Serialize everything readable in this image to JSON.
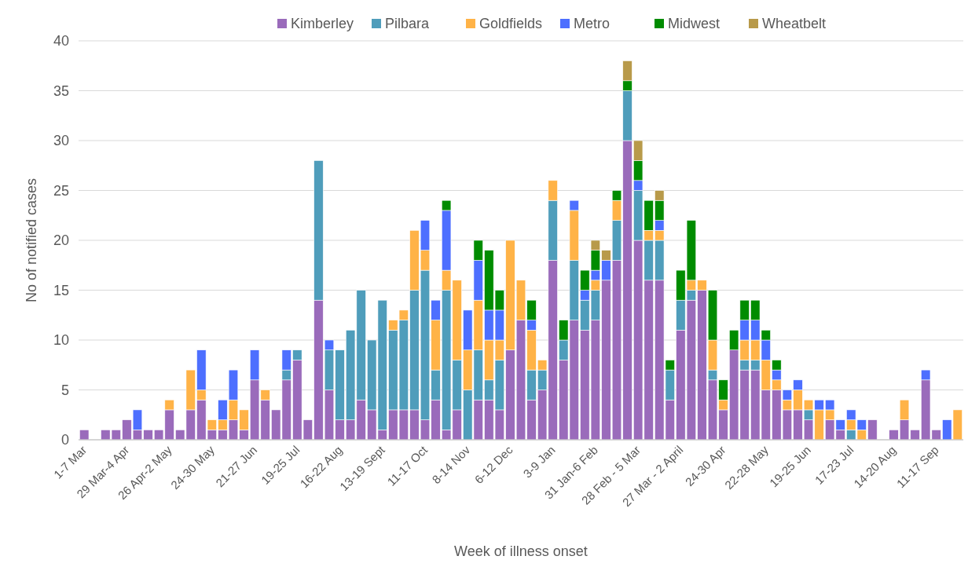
{
  "chart_data": {
    "type": "bar",
    "stacked": true,
    "xlabel": "Week of illness onset",
    "ylabel": "No of notified cases",
    "categories": [
      "1-7 Mar",
      null,
      null,
      null,
      "29 Mar-4 Apr",
      null,
      null,
      null,
      "26 Apr-2 May",
      null,
      null,
      null,
      "24-30 May",
      null,
      null,
      null,
      "21-27 Jun",
      null,
      null,
      null,
      "19-25 Jul",
      null,
      null,
      null,
      "16-22 Aug",
      null,
      null,
      null,
      "13-19 Sept",
      null,
      null,
      null,
      "11-17 Oct",
      null,
      null,
      null,
      "8-14 Nov",
      null,
      null,
      null,
      "6-12 Dec",
      null,
      null,
      null,
      "3-9 Jan",
      null,
      null,
      null,
      "31 Jan-6 Feb",
      null,
      null,
      null,
      "28 Feb - 5 Mar",
      null,
      null,
      null,
      "27 Mar - 2 April",
      null,
      null,
      null,
      "24-30 Apr",
      null,
      null,
      null,
      "22-28 May",
      null,
      null,
      null,
      "19-25 Jun",
      null,
      null,
      null,
      "17-23 Jul",
      null,
      null,
      null,
      "14-20 Aug",
      null,
      null,
      null,
      "11-17 Sep",
      null,
      null
    ],
    "series": [
      {
        "name": "Kimberley",
        "color": "#9a6bbb",
        "values": [
          1,
          0,
          1,
          1,
          2,
          1,
          1,
          1,
          3,
          1,
          3,
          4,
          1,
          1,
          2,
          1,
          6,
          4,
          3,
          6,
          8,
          2,
          14,
          5,
          2,
          2,
          4,
          3,
          1,
          3,
          3,
          3,
          2,
          4,
          1,
          3,
          0,
          4,
          4,
          3,
          9,
          12,
          4,
          5,
          18,
          8,
          12,
          11,
          12,
          16,
          18,
          30,
          20,
          16,
          16,
          4,
          11,
          14,
          15,
          6,
          3,
          9,
          7,
          7,
          5,
          5,
          3,
          3,
          2,
          0,
          2,
          1,
          0,
          0,
          2,
          0,
          1,
          2,
          1,
          6,
          1,
          0,
          0
        ]
      },
      {
        "name": "Pilbara",
        "color": "#4f9dbb",
        "values": [
          0,
          0,
          0,
          0,
          0,
          0,
          0,
          0,
          0,
          0,
          0,
          0,
          0,
          0,
          0,
          0,
          0,
          0,
          0,
          1,
          1,
          0,
          14,
          4,
          7,
          9,
          11,
          7,
          13,
          8,
          9,
          12,
          15,
          3,
          14,
          5,
          5,
          5,
          2,
          5,
          0,
          0,
          3,
          2,
          6,
          2,
          6,
          3,
          3,
          0,
          4,
          5,
          5,
          4,
          4,
          3,
          3,
          1,
          0,
          1,
          0,
          0,
          1,
          1,
          0,
          0,
          0,
          0,
          1,
          0,
          0,
          0,
          1,
          0,
          0,
          0,
          0,
          0,
          0,
          0,
          0,
          0,
          0
        ]
      },
      {
        "name": "Goldfields",
        "color": "#ffb347",
        "values": [
          0,
          0,
          0,
          0,
          0,
          0,
          0,
          0,
          1,
          0,
          4,
          1,
          1,
          1,
          2,
          2,
          0,
          1,
          0,
          0,
          0,
          0,
          0,
          0,
          0,
          0,
          0,
          0,
          0,
          1,
          1,
          6,
          2,
          5,
          2,
          8,
          4,
          5,
          4,
          2,
          11,
          4,
          4,
          1,
          2,
          0,
          5,
          0,
          1,
          0,
          2,
          0,
          0,
          1,
          1,
          0,
          0,
          1,
          1,
          3,
          1,
          0,
          2,
          2,
          3,
          1,
          1,
          2,
          1,
          3,
          1,
          0,
          1,
          1,
          0,
          0,
          0,
          2,
          0,
          0,
          0,
          0,
          3
        ]
      },
      {
        "name": "Metro",
        "color": "#4d6fff",
        "values": [
          0,
          0,
          0,
          0,
          0,
          2,
          0,
          0,
          0,
          0,
          0,
          4,
          0,
          2,
          3,
          0,
          3,
          0,
          0,
          2,
          0,
          0,
          0,
          1,
          0,
          0,
          0,
          0,
          0,
          0,
          0,
          0,
          3,
          2,
          6,
          0,
          4,
          4,
          3,
          3,
          0,
          0,
          1,
          0,
          0,
          0,
          1,
          1,
          1,
          2,
          0,
          0,
          1,
          0,
          1,
          0,
          0,
          0,
          0,
          0,
          0,
          0,
          2,
          2,
          2,
          1,
          1,
          1,
          0,
          1,
          1,
          1,
          1,
          1,
          0,
          0,
          0,
          0,
          0,
          1,
          0,
          2,
          0
        ]
      },
      {
        "name": "Midwest",
        "color": "#008c00",
        "values": [
          0,
          0,
          0,
          0,
          0,
          0,
          0,
          0,
          0,
          0,
          0,
          0,
          0,
          0,
          0,
          0,
          0,
          0,
          0,
          0,
          0,
          0,
          0,
          0,
          0,
          0,
          0,
          0,
          0,
          0,
          0,
          0,
          0,
          0,
          1,
          0,
          0,
          2,
          6,
          2,
          0,
          0,
          2,
          0,
          0,
          2,
          0,
          2,
          2,
          0,
          1,
          1,
          2,
          3,
          2,
          1,
          3,
          6,
          0,
          5,
          2,
          2,
          2,
          2,
          1,
          1,
          0,
          0,
          0,
          0,
          0,
          0,
          0,
          0,
          0,
          0,
          0,
          0,
          0,
          0,
          0,
          0,
          0
        ]
      },
      {
        "name": "Wheatbelt",
        "color": "#b89a4a",
        "values": [
          0,
          0,
          0,
          0,
          0,
          0,
          0,
          0,
          0,
          0,
          0,
          0,
          0,
          0,
          0,
          0,
          0,
          0,
          0,
          0,
          0,
          0,
          0,
          0,
          0,
          0,
          0,
          0,
          0,
          0,
          0,
          0,
          0,
          0,
          0,
          0,
          0,
          0,
          0,
          0,
          0,
          0,
          0,
          0,
          0,
          0,
          0,
          0,
          1,
          1,
          0,
          2,
          2,
          0,
          1,
          0,
          0,
          0,
          0,
          0,
          0,
          0,
          0,
          0,
          0,
          0,
          0,
          0,
          0,
          0,
          0,
          0,
          0,
          0,
          0,
          0,
          0,
          0,
          0,
          0,
          0,
          0,
          0
        ]
      }
    ],
    "ylim": [
      0,
      40
    ],
    "yticks": [
      0,
      5,
      10,
      15,
      20,
      25,
      30,
      35,
      40
    ],
    "grid": "y",
    "legend": "top"
  }
}
